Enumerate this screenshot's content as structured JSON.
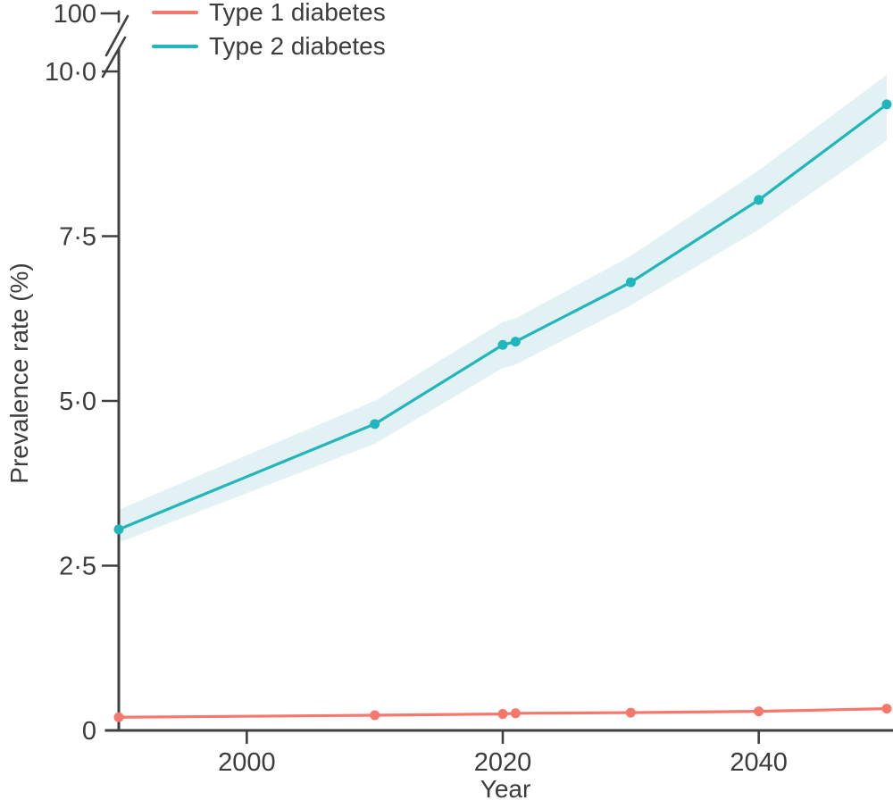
{
  "chart_data": {
    "type": "line",
    "title": "",
    "xlabel": "Year",
    "ylabel": "Prevalence rate (%)",
    "x": [
      1990,
      2010,
      2020,
      2021,
      2030,
      2040,
      2050
    ],
    "series": [
      {
        "name": "Type 1 diabetes",
        "color": "#f5786d",
        "values": [
          0.2,
          0.23,
          0.25,
          0.26,
          0.27,
          0.29,
          0.33
        ]
      },
      {
        "name": "Type 2 diabetes",
        "color": "#23b5bc",
        "band_color": "#e2f2f4",
        "values": [
          3.05,
          4.65,
          5.85,
          5.9,
          6.8,
          8.05,
          9.5
        ],
        "ci_upper": [
          3.35,
          5.0,
          6.2,
          6.25,
          7.2,
          8.5,
          9.95
        ],
        "ci_lower": [
          2.85,
          4.35,
          5.5,
          5.55,
          6.45,
          7.6,
          8.95
        ]
      }
    ],
    "x_ticks": [
      2000,
      2020,
      2040
    ],
    "y_ticks": [
      {
        "value": 0,
        "label": "0"
      },
      {
        "value": 2.5,
        "label": "2·5"
      },
      {
        "value": 5,
        "label": "5·0"
      },
      {
        "value": 7.5,
        "label": "7·5"
      },
      {
        "value": 10,
        "label": "10·0"
      }
    ],
    "y_axis_break": {
      "enabled": true,
      "top_label": "100"
    },
    "xlim": [
      1990,
      2050
    ],
    "ylim": [
      0,
      10.35
    ],
    "grid": false,
    "legend_position": "top-left"
  },
  "style": {
    "axis_color": "#404040",
    "text_color": "#3c3c3c",
    "background": "#ffffff"
  }
}
